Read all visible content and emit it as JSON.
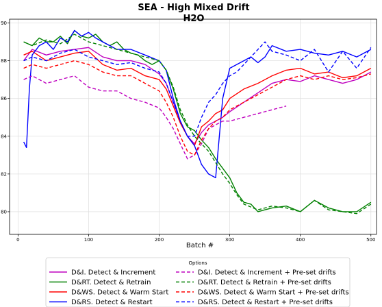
{
  "chart_data": {
    "type": "line",
    "title": "SEA - High Mixed Drift",
    "subtitle": "H2O",
    "xlabel": "Batch #",
    "ylabel": "",
    "xlim": [
      -12,
      508
    ],
    "ylim": [
      78.8,
      90.2
    ],
    "xticks": [
      0,
      100,
      200,
      300,
      400,
      500
    ],
    "yticks": [
      80,
      82,
      84,
      86,
      88,
      90
    ],
    "grid": true,
    "legend_title": "Options",
    "legend_position": "bottom",
    "series": [
      {
        "name": "D&I. Detect & Increment",
        "color": "#bf00bf",
        "dash": "solid",
        "x": [
          8,
          20,
          40,
          60,
          80,
          100,
          120,
          140,
          160,
          180,
          200,
          210,
          220,
          230,
          240,
          250,
          260,
          270,
          280,
          290,
          300,
          320,
          340,
          360,
          380,
          400,
          420,
          440,
          460,
          480,
          500
        ],
        "y": [
          88.0,
          88.6,
          88.3,
          88.5,
          88.6,
          88.7,
          88.2,
          88.0,
          88.0,
          87.8,
          87.3,
          86.8,
          85.8,
          84.8,
          84.0,
          83.6,
          84.2,
          84.6,
          84.8,
          85.0,
          85.3,
          85.8,
          86.3,
          86.8,
          87.0,
          86.9,
          87.2,
          87.0,
          86.8,
          87.0,
          87.4
        ]
      },
      {
        "name": "D&RT. Detect & Retrain",
        "color": "#008000",
        "dash": "solid",
        "x": [
          8,
          20,
          30,
          40,
          50,
          60,
          70,
          80,
          90,
          100,
          110,
          120,
          130,
          140,
          150,
          160,
          170,
          180,
          190,
          200,
          210,
          220,
          230,
          240,
          250,
          260,
          270,
          280,
          290,
          300,
          310,
          320,
          330,
          340,
          360,
          380,
          400,
          420,
          440,
          460,
          480,
          500
        ],
        "y": [
          89.0,
          88.8,
          89.2,
          89.0,
          89.0,
          89.3,
          88.9,
          89.6,
          89.3,
          89.2,
          89.4,
          89.0,
          88.8,
          89.0,
          88.6,
          88.4,
          88.3,
          88.0,
          87.8,
          88.0,
          87.5,
          86.5,
          85.2,
          84.5,
          84.3,
          83.8,
          83.4,
          82.8,
          82.3,
          81.8,
          81.0,
          80.5,
          80.4,
          80.0,
          80.2,
          80.3,
          80.0,
          80.6,
          80.2,
          80.0,
          80.0,
          80.5
        ]
      },
      {
        "name": "D&WS. Detect & Warm Start",
        "color": "#ff0000",
        "dash": "solid",
        "x": [
          8,
          20,
          40,
          60,
          80,
          100,
          120,
          140,
          160,
          180,
          200,
          210,
          220,
          230,
          240,
          250,
          260,
          270,
          280,
          290,
          300,
          320,
          340,
          360,
          380,
          400,
          420,
          440,
          460,
          480,
          500
        ],
        "y": [
          88.3,
          88.5,
          88.0,
          88.2,
          88.4,
          88.5,
          87.8,
          87.5,
          87.6,
          87.2,
          87.0,
          86.5,
          85.6,
          84.7,
          84.0,
          83.5,
          84.5,
          84.8,
          85.2,
          85.4,
          86.0,
          86.5,
          86.8,
          87.2,
          87.5,
          87.6,
          87.3,
          87.4,
          87.1,
          87.2,
          87.6
        ]
      },
      {
        "name": "D&RS. Detect & Restart",
        "color": "#0000ff",
        "dash": "solid",
        "x": [
          8,
          12,
          16,
          20,
          30,
          40,
          50,
          60,
          70,
          80,
          90,
          100,
          110,
          120,
          140,
          160,
          180,
          200,
          210,
          220,
          230,
          240,
          250,
          260,
          270,
          280,
          290,
          300,
          310,
          320,
          330,
          340,
          350,
          360,
          380,
          400,
          420,
          440,
          460,
          480,
          500
        ],
        "y": [
          83.7,
          83.4,
          86.5,
          88.3,
          88.8,
          89.0,
          88.6,
          89.2,
          89.0,
          89.6,
          89.3,
          89.5,
          89.2,
          89.0,
          88.6,
          88.6,
          88.3,
          88.0,
          87.5,
          86.0,
          84.8,
          84.0,
          83.5,
          82.5,
          82.0,
          81.8,
          86.0,
          87.6,
          87.8,
          88.0,
          88.2,
          87.9,
          88.2,
          88.8,
          88.5,
          88.6,
          88.4,
          88.3,
          88.5,
          88.2,
          88.6
        ]
      },
      {
        "name": "D&I. Detect & Increment + Pre-set drifts",
        "color": "#bf00bf",
        "dash": "dashed",
        "x": [
          8,
          20,
          40,
          60,
          80,
          100,
          120,
          140,
          160,
          180,
          200,
          210,
          220,
          230,
          240,
          250,
          260,
          270,
          280,
          290,
          300,
          320,
          340,
          360,
          380
        ],
        "y": [
          87.0,
          87.2,
          86.8,
          87.0,
          87.2,
          86.6,
          86.4,
          86.4,
          86.0,
          85.8,
          85.5,
          85.0,
          84.4,
          83.6,
          82.8,
          83.0,
          83.6,
          84.4,
          84.6,
          84.8,
          84.8,
          85.0,
          85.2,
          85.4,
          85.6
        ]
      },
      {
        "name": "D&RT. Detect & Retrain + Pre-set drifts",
        "color": "#008000",
        "dash": "dashed",
        "x": [
          8,
          20,
          40,
          60,
          80,
          100,
          120,
          140,
          160,
          180,
          200,
          210,
          220,
          230,
          240,
          250,
          260,
          270,
          280,
          290,
          300,
          310,
          320,
          340,
          360,
          380,
          400,
          420,
          440,
          460,
          480,
          500
        ],
        "y": [
          89.0,
          88.8,
          89.1,
          88.9,
          89.4,
          89.0,
          88.8,
          88.6,
          88.4,
          88.2,
          88.0,
          87.5,
          86.6,
          85.4,
          84.6,
          84.0,
          83.6,
          83.2,
          82.6,
          82.0,
          81.5,
          80.9,
          80.4,
          80.1,
          80.3,
          80.2,
          80.0,
          80.6,
          80.1,
          80.0,
          79.9,
          80.4
        ]
      },
      {
        "name": "D&WS. Detect & Warm Start + Pre-set drifts",
        "color": "#ff0000",
        "dash": "dashed",
        "x": [
          8,
          20,
          40,
          60,
          80,
          100,
          120,
          140,
          160,
          180,
          200,
          210,
          220,
          230,
          240,
          250,
          260,
          270,
          280,
          290,
          300,
          320,
          340,
          360,
          380,
          400,
          420,
          440,
          460,
          480,
          500
        ],
        "y": [
          87.6,
          87.8,
          87.6,
          87.8,
          88.0,
          87.8,
          87.4,
          87.2,
          87.2,
          86.8,
          86.4,
          85.8,
          85.0,
          84.0,
          83.2,
          83.0,
          83.8,
          84.4,
          84.8,
          85.0,
          85.4,
          85.8,
          86.2,
          86.6,
          87.0,
          87.2,
          87.0,
          87.2,
          87.0,
          87.1,
          87.3
        ]
      },
      {
        "name": "D&RS. Detect & Restart + Pre-set drifts",
        "color": "#0000ff",
        "dash": "dashed",
        "x": [
          8,
          20,
          40,
          60,
          80,
          100,
          120,
          140,
          160,
          180,
          200,
          210,
          220,
          230,
          240,
          250,
          260,
          270,
          280,
          290,
          300,
          310,
          320,
          330,
          340,
          350,
          360,
          380,
          400,
          420,
          440,
          460,
          480,
          500
        ],
        "y": [
          88.0,
          88.2,
          88.0,
          88.4,
          88.6,
          88.2,
          88.0,
          87.8,
          87.9,
          87.6,
          87.4,
          86.8,
          85.8,
          84.8,
          84.0,
          84.0,
          85.0,
          85.8,
          86.2,
          86.8,
          87.2,
          87.4,
          87.8,
          88.2,
          88.6,
          89.0,
          88.5,
          88.3,
          88.0,
          88.6,
          87.4,
          88.5,
          87.6,
          88.7
        ]
      }
    ]
  }
}
